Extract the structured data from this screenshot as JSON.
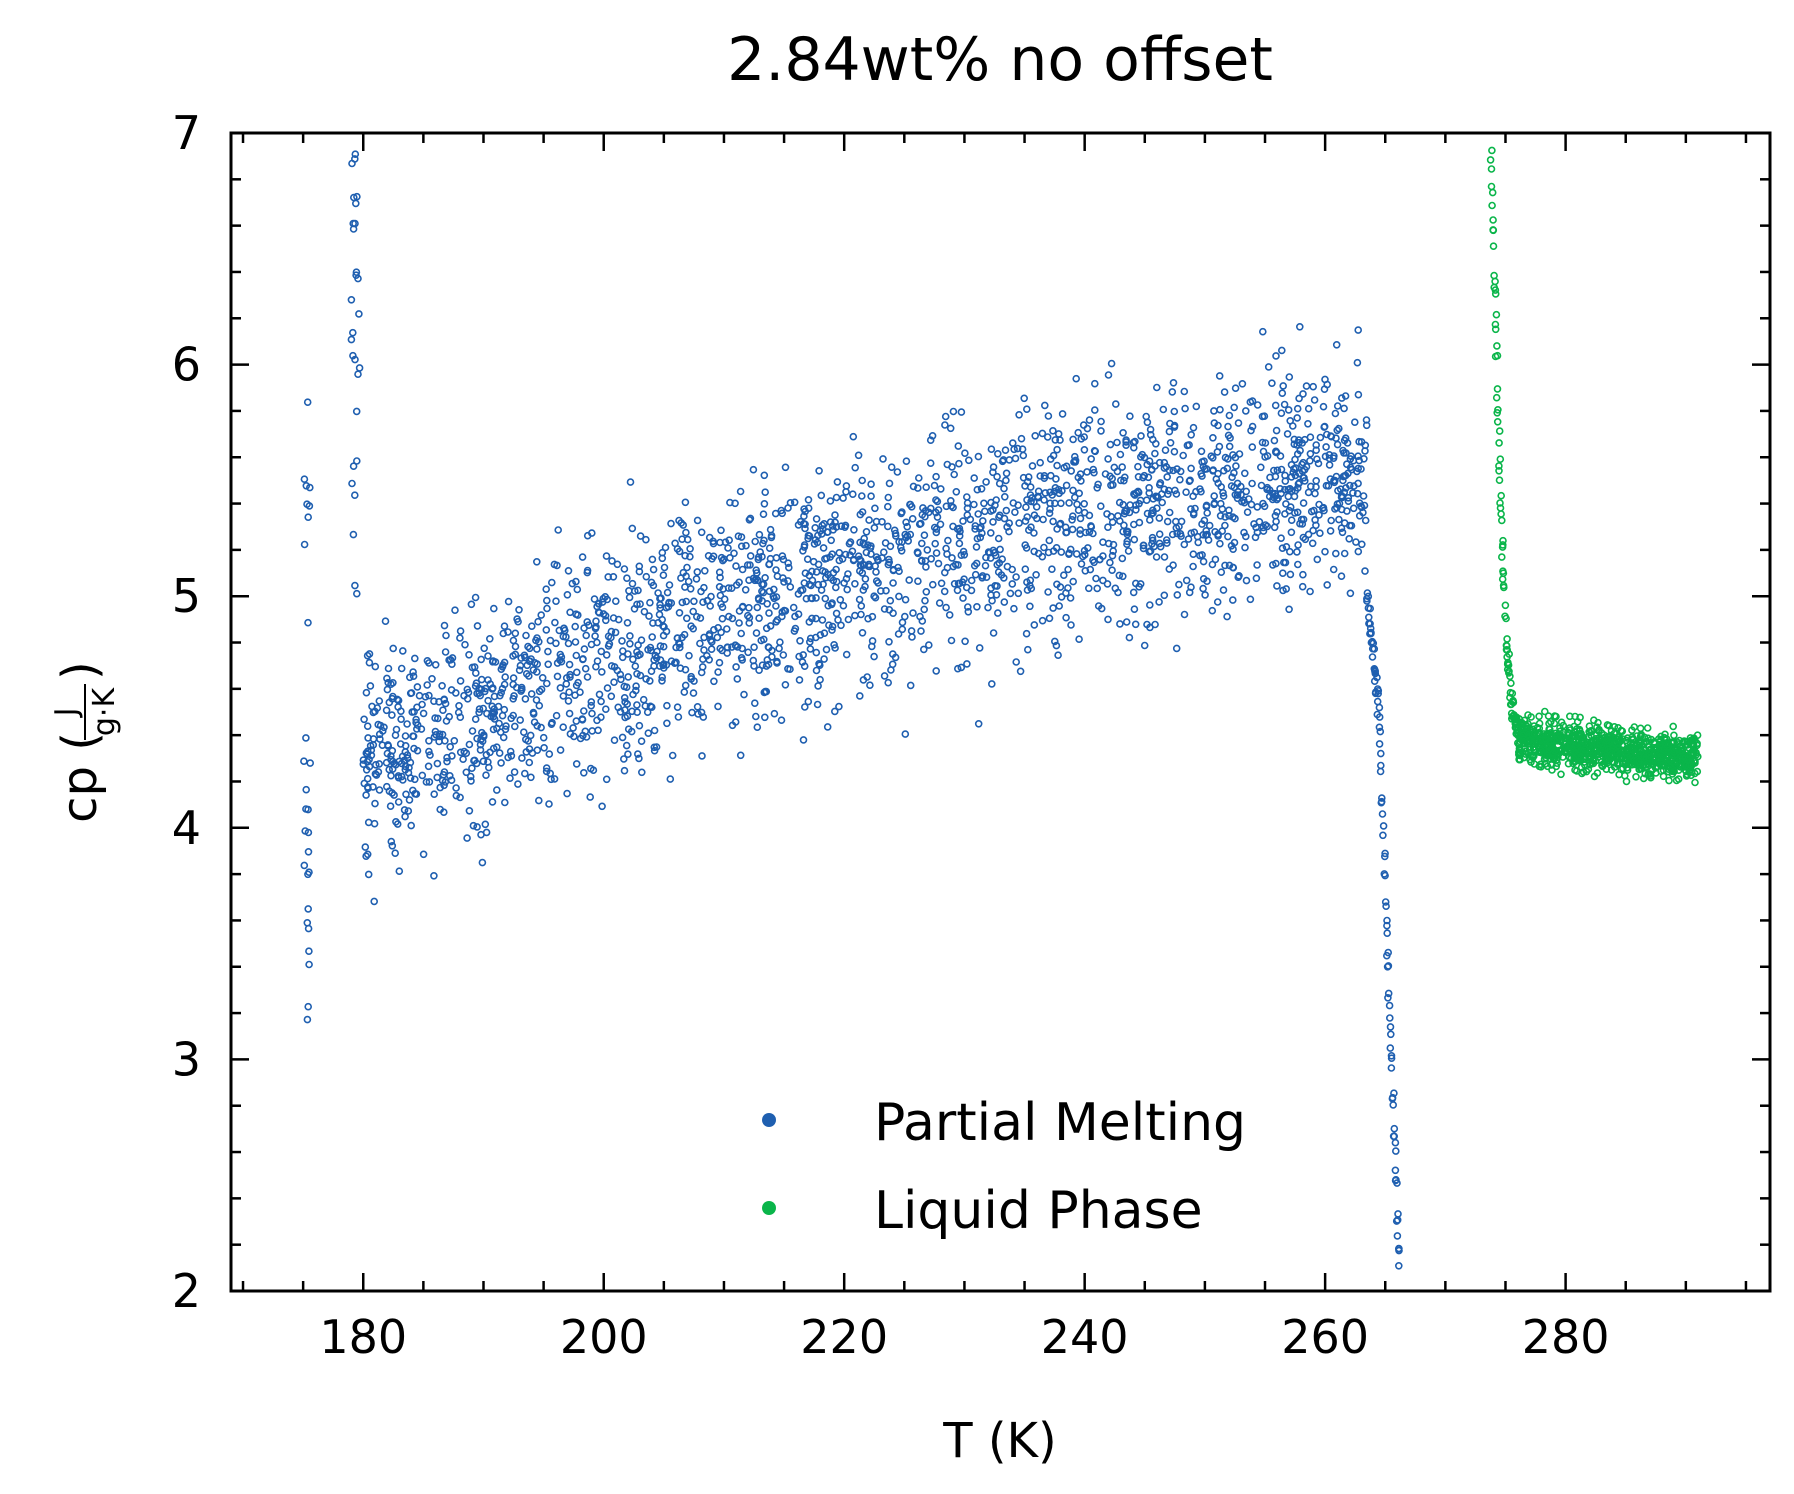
{
  "chart_data": {
    "type": "scatter",
    "title": "2.84wt% no offset",
    "xlabel": "T (K)",
    "ylabel": {
      "prefix": "cp (",
      "numerator": "J",
      "denominator": "g·K",
      "suffix": ")"
    },
    "xlim": [
      169,
      297
    ],
    "ylim": [
      2,
      7
    ],
    "xticks": [
      180,
      200,
      220,
      240,
      260,
      280
    ],
    "yticks": [
      2,
      3,
      4,
      5,
      6,
      7
    ],
    "grid": false,
    "legend_placement": "lower-center",
    "series": [
      {
        "name": "Partial Melting",
        "color": "#1f5fb0",
        "marker": "open-circle",
        "segments": [
          {
            "x_range": [
              175.0,
              175.6
            ],
            "y_range": [
              2.9,
              5.85
            ],
            "shape": "vertical spike"
          },
          {
            "x_range": [
              179.0,
              179.7
            ],
            "y_range": [
              5.0,
              7.0
            ],
            "shape": "vertical spike"
          },
          {
            "x_range": [
              180.0,
              263.5
            ],
            "trend": [
              [
                180,
                4.3
              ],
              [
                200,
                4.75
              ],
              [
                220,
                5.1
              ],
              [
                240,
                5.35
              ],
              [
                262,
                5.55
              ]
            ],
            "spread": 0.35
          },
          {
            "x_range": [
              263.5,
              266.2
            ],
            "trend": [
              [
                263.5,
                5.0
              ],
              [
                264.5,
                4.5
              ],
              [
                265.5,
                3.0
              ],
              [
                266.2,
                2.1
              ]
            ],
            "shape": "steep drop"
          }
        ]
      },
      {
        "name": "Liquid Phase",
        "color": "#0ab54a",
        "marker": "open-circle",
        "segments": [
          {
            "x_range": [
              273.8,
              276.0
            ],
            "trend": [
              [
                273.8,
                6.9
              ],
              [
                274.5,
                5.6
              ],
              [
                275.0,
                4.85
              ],
              [
                275.5,
                4.55
              ],
              [
                276.0,
                4.42
              ]
            ],
            "shape": "steep decay"
          },
          {
            "x_range": [
              276.0,
              291.0
            ],
            "trend": [
              [
                276.0,
                4.38
              ],
              [
                291.0,
                4.3
              ]
            ],
            "spread": 0.07
          }
        ]
      }
    ]
  }
}
